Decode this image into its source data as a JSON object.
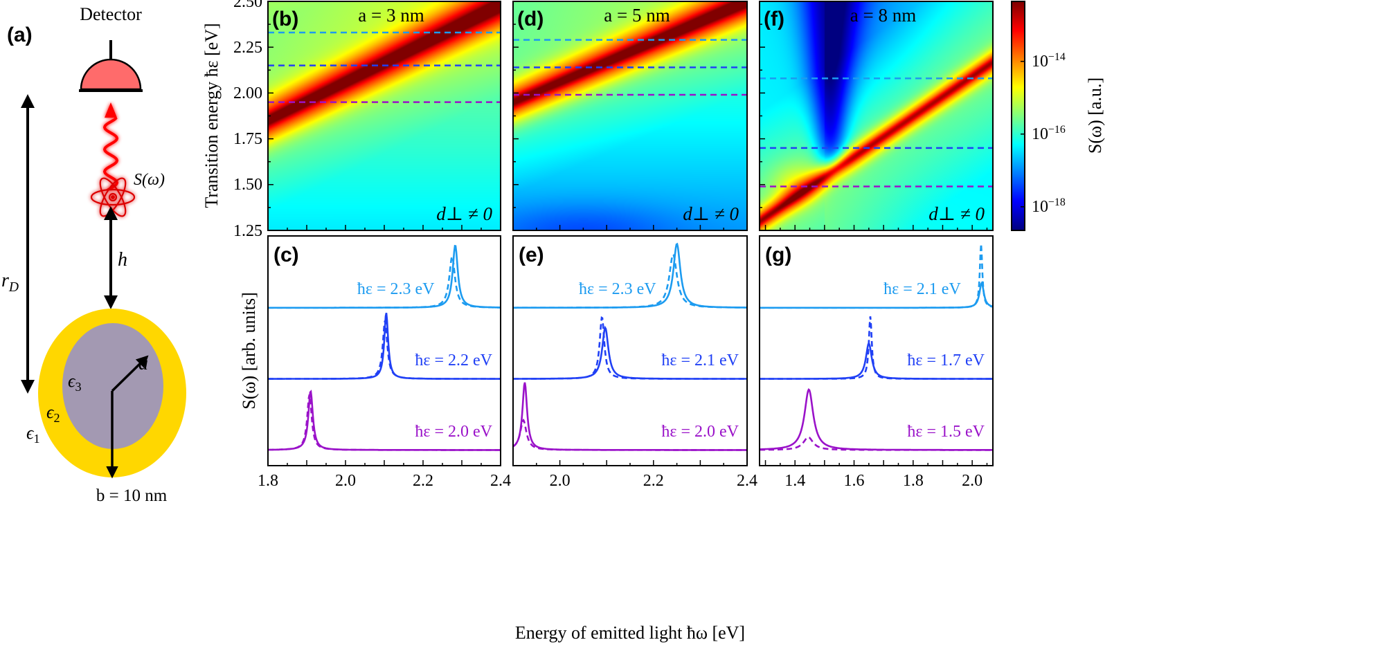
{
  "schematic": {
    "label": "(a)",
    "detector": "Detector",
    "signal": "S(ω)",
    "r_main": "r",
    "r_sub": "D",
    "h": "h",
    "a": "a",
    "eps3_main": "ϵ",
    "eps3_sub": "3",
    "eps2_main": "ϵ",
    "eps2_sub": "2",
    "eps1_main": "ϵ",
    "eps1_sub": "1",
    "b_label": "b = 10 nm",
    "colors": {
      "detector": "#FF6B6B",
      "shell": "#FFD700",
      "core": "#A399B2",
      "photon": "#FF0000"
    }
  },
  "colorbar": {
    "label": "S(ω) [a.u.]",
    "scale": "log",
    "colormap": "jet",
    "range_log10": [
      -18.65,
      -12.35
    ],
    "ticks": [
      {
        "exp": -14,
        "label_base": "10",
        "label_exp": "−14"
      },
      {
        "exp": -16,
        "label_base": "10",
        "label_exp": "−16"
      },
      {
        "exp": -18,
        "label_base": "10",
        "label_exp": "−18"
      }
    ]
  },
  "shared": {
    "top_ylabel": "Transition energy ħε [eV]",
    "bottom_ylabel": "S(ω) [arb. units]",
    "xlabel": "Energy of emitted light ħω [eV]",
    "top_yticks": [
      "2.50",
      "2.25",
      "2.00",
      "1.75",
      "1.50",
      "1.25"
    ],
    "ylim": [
      1.25,
      2.5
    ],
    "annotation": "d⊥ ≠ 0",
    "line_colors": [
      "#1C9BF0",
      "#2040F5",
      "#9A12C9"
    ]
  },
  "chart_data": [
    {
      "panel": "(b)",
      "type": "heatmap",
      "title": "a = 3 nm",
      "xlim": [
        1.8,
        2.4
      ],
      "ylim": [
        1.25,
        2.5
      ],
      "dashed_levels": [
        2.33,
        2.15,
        1.95
      ]
    },
    {
      "panel": "(d)",
      "type": "heatmap",
      "title": "a = 5 nm",
      "xlim": [
        1.9,
        2.4
      ],
      "ylim": [
        1.25,
        2.5
      ],
      "dashed_levels": [
        2.29,
        2.14,
        1.99
      ]
    },
    {
      "panel": "(f)",
      "type": "heatmap",
      "title": "a = 8 nm",
      "xlim": [
        1.28,
        2.07
      ],
      "ylim": [
        1.25,
        2.5
      ],
      "dashed_levels": [
        2.08,
        1.7,
        1.49
      ]
    },
    {
      "panel": "(c)",
      "type": "line",
      "xlim": [
        1.8,
        2.4
      ],
      "xticks": [
        "1.8",
        "2.0",
        "2.2",
        "2.4"
      ],
      "xtick_values": [
        1.8,
        2.0,
        2.2,
        2.4
      ],
      "series": [
        {
          "label": "ħε = 2.3 eV",
          "offset": 2,
          "solid": {
            "peak": 2.283,
            "height": 0.88,
            "width": 0.008
          },
          "dashed": {
            "peak": 2.275,
            "height": 0.72,
            "width": 0.009
          }
        },
        {
          "label": "ħε = 2.2 eV",
          "offset": 1,
          "solid": {
            "peak": 2.105,
            "height": 0.93,
            "width": 0.006
          },
          "dashed": {
            "peak": 2.102,
            "height": 0.82,
            "width": 0.007
          }
        },
        {
          "label": "ħε = 2.0 eV",
          "offset": 0,
          "solid": {
            "peak": 1.91,
            "height": 0.83,
            "width": 0.007
          },
          "dashed": {
            "peak": 1.907,
            "height": 0.78,
            "width": 0.007
          }
        }
      ]
    },
    {
      "panel": "(e)",
      "type": "line",
      "xlim": [
        1.9,
        2.4
      ],
      "xticks": [
        "2.0",
        "2.2",
        "2.4"
      ],
      "xtick_values": [
        2.0,
        2.2,
        2.4
      ],
      "series": [
        {
          "label": "ħε = 2.3 eV",
          "offset": 2,
          "solid": {
            "peak": 2.25,
            "height": 0.9,
            "width": 0.009
          },
          "dashed": {
            "peak": 2.242,
            "height": 0.75,
            "width": 0.01
          }
        },
        {
          "label": "ħε = 2.1 eV",
          "offset": 1,
          "solid": {
            "peak": 2.097,
            "height": 0.72,
            "width": 0.008
          },
          "dashed": {
            "peak": 2.09,
            "height": 0.87,
            "width": 0.006
          }
        },
        {
          "label": "ħε = 2.0 eV",
          "offset": 0,
          "solid": {
            "peak": 1.925,
            "height": 0.95,
            "width": 0.006
          },
          "dashed": {
            "peak": 1.922,
            "height": 0.42,
            "width": 0.008
          }
        }
      ]
    },
    {
      "panel": "(g)",
      "type": "line",
      "xlim": [
        1.28,
        2.07
      ],
      "xticks": [
        "1.4",
        "1.6",
        "1.8",
        "2.0"
      ],
      "xtick_values": [
        1.4,
        1.6,
        1.8,
        2.0
      ],
      "series": [
        {
          "label": "ħε = 2.1 eV",
          "offset": 2,
          "solid": {
            "peak": 2.032,
            "height": 0.35,
            "width": 0.009
          },
          "dashed": {
            "peak": 2.03,
            "height": 0.9,
            "width": 0.005
          }
        },
        {
          "label": "ħε = 1.7 eV",
          "offset": 1,
          "solid": {
            "peak": 1.65,
            "height": 0.5,
            "width": 0.012
          },
          "dashed": {
            "peak": 1.655,
            "height": 0.88,
            "width": 0.006
          }
        },
        {
          "label": "ħε = 1.5 eV",
          "offset": 0,
          "solid": {
            "peak": 1.447,
            "height": 0.85,
            "width": 0.018
          },
          "dashed": {
            "peak": 1.445,
            "height": 0.18,
            "width": 0.02
          }
        }
      ]
    }
  ]
}
